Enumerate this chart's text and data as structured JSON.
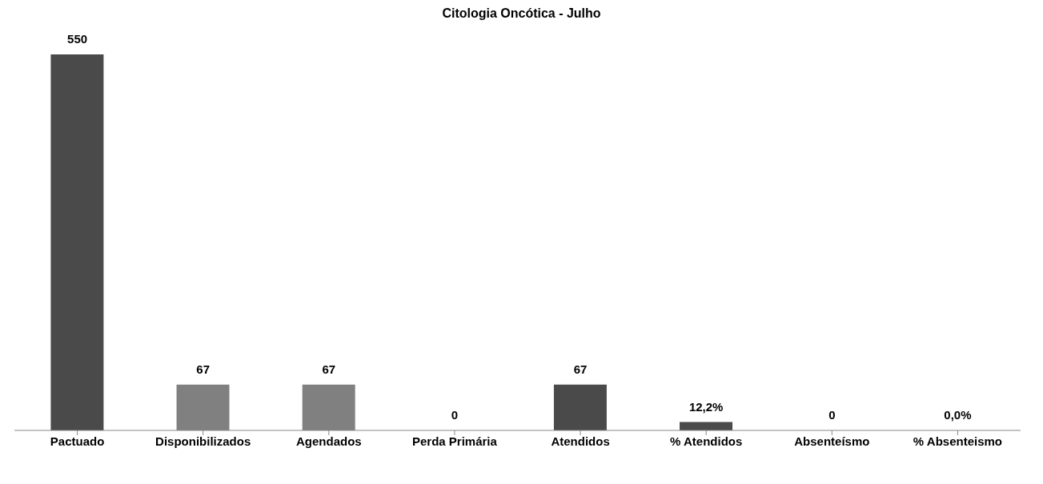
{
  "chart_data": {
    "type": "bar",
    "title": "Citologia Oncótica - Julho",
    "categories": [
      "Pactuado",
      "Disponibilizados",
      "Agendados",
      "Perda Primária",
      "Atendidos",
      "% Atendidos",
      "Absenteísmo",
      "% Absenteismo"
    ],
    "values": [
      550,
      67,
      67,
      0,
      67,
      12.2,
      0,
      0
    ],
    "colors": [
      "#4a4a4a",
      "#808080",
      "#808080",
      "#4a4a4a",
      "#4a4a4a",
      "#4a4a4a",
      "#4a4a4a",
      "#4a4a4a"
    ],
    "value_labels": [
      "550",
      "67",
      "67",
      "0",
      "67",
      "12,2%",
      "0",
      "0,0%"
    ]
  }
}
